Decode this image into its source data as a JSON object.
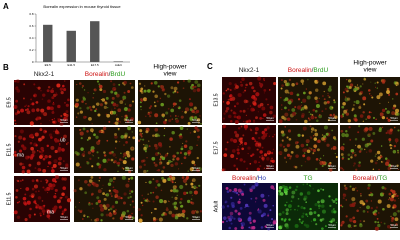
{
  "chart_data": {
    "type": "bar",
    "title": "Borealin expression in mouse thyroid tissue",
    "categories": [
      "E9.5",
      "E11.5",
      "E17.5",
      "Adult"
    ],
    "values": [
      0.62,
      0.52,
      0.68,
      0.01
    ],
    "color": "#555555",
    "ylim": [
      0,
      0.8
    ],
    "yticks": [
      0,
      0.2,
      0.4,
      0.6,
      0.8
    ]
  },
  "figure": {
    "panel_a": {
      "label": "A"
    },
    "panel_b": {
      "label": "B",
      "headers": [
        [
          "Nkx2-1"
        ],
        [
          "Borealin",
          "/",
          "BrdU"
        ],
        [
          "High-power",
          "view"
        ]
      ],
      "rows": [
        "E9.5",
        "E11.5",
        "E11.5"
      ],
      "annotations": [
        "ub",
        "ma",
        "ma"
      ]
    },
    "panel_c": {
      "label": "C",
      "headers": [
        [
          "Nkx2-1"
        ],
        [
          "Borealin",
          "/",
          "BrdU"
        ],
        [
          "High-power",
          "view"
        ]
      ],
      "adult_headers": [
        [
          "Borealin",
          "/",
          "Ho"
        ],
        [
          "TG"
        ],
        [
          "Borealin",
          "/",
          "TG"
        ]
      ],
      "rows": [
        "E13.5",
        "E17.5",
        "Adult"
      ]
    },
    "scale_bar": "50μm"
  }
}
